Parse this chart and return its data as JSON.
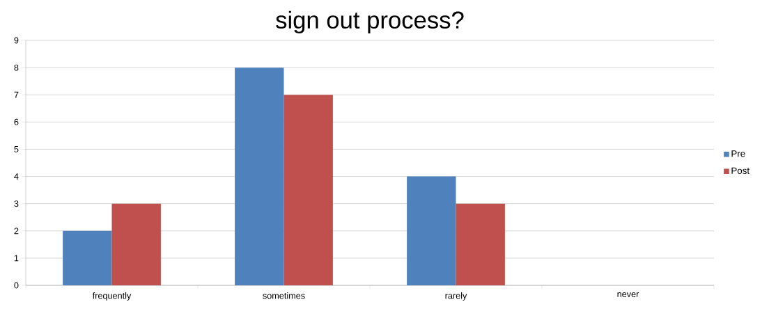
{
  "chart_data": {
    "type": "bar",
    "title": "sign out process?",
    "categories": [
      "frequently",
      "sometimes",
      "rarely",
      "never"
    ],
    "series": [
      {
        "name": "Pre",
        "color": "#4f81bd",
        "values": [
          2,
          8,
          4,
          0
        ]
      },
      {
        "name": "Post",
        "color": "#c0504d",
        "values": [
          3,
          7,
          3,
          0
        ]
      }
    ],
    "ylim": [
      0,
      9
    ],
    "yticks": [
      0,
      1,
      2,
      3,
      4,
      5,
      6,
      7,
      8,
      9
    ],
    "grid": "y",
    "legend": "right"
  }
}
